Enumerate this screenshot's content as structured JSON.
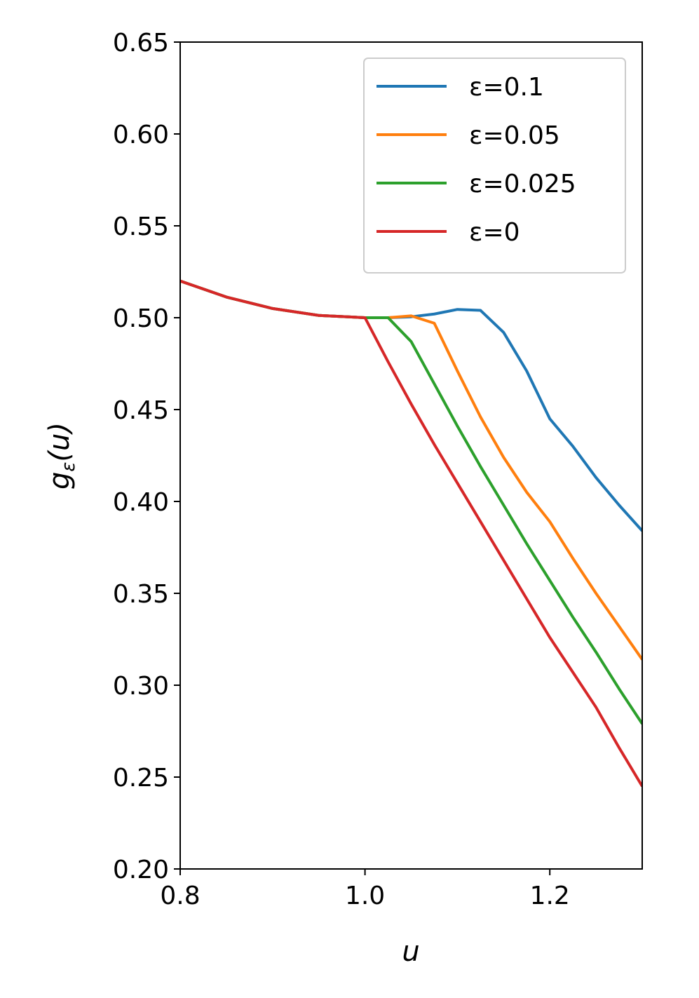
{
  "chart_data": {
    "type": "line",
    "xlabel": "u",
    "ylabel": {
      "base": "g",
      "sub": "ε",
      "rest": "(u)"
    },
    "x": [
      0.8,
      0.85,
      0.9,
      0.95,
      1.0,
      1.025,
      1.05,
      1.075,
      1.1,
      1.125,
      1.15,
      1.175,
      1.2,
      1.225,
      1.25,
      1.275,
      1.3
    ],
    "series": [
      {
        "name": "ε=0.1",
        "color": "#1f77b4",
        "values": [
          0.52,
          0.51125,
          0.505,
          0.50125,
          0.5,
          0.5,
          0.5005,
          0.502,
          0.5045,
          0.504,
          0.492,
          0.471,
          0.445,
          0.43,
          0.413,
          0.398,
          0.384
        ]
      },
      {
        "name": "ε=0.05",
        "color": "#ff7f0e",
        "values": [
          0.52,
          0.51125,
          0.505,
          0.50125,
          0.5,
          0.5,
          0.501,
          0.497,
          0.471,
          0.446,
          0.424,
          0.405,
          0.389,
          0.369,
          0.35,
          0.332,
          0.314
        ]
      },
      {
        "name": "ε=0.025",
        "color": "#2ca02c",
        "values": [
          0.52,
          0.51125,
          0.505,
          0.50125,
          0.5,
          0.5,
          0.487,
          0.464,
          0.441,
          0.419,
          0.398,
          0.377,
          0.357,
          0.337,
          0.318,
          0.298,
          0.279
        ]
      },
      {
        "name": "ε=0",
        "color": "#d62728",
        "values": [
          0.52,
          0.51125,
          0.505,
          0.50125,
          0.5,
          0.476,
          0.453,
          0.431,
          0.41,
          0.389,
          0.368,
          0.347,
          0.326,
          0.307,
          0.288,
          0.266,
          0.245
        ]
      }
    ],
    "xlim": [
      0.8,
      1.3
    ],
    "xticks": [
      0.8,
      {
        "value": 1,
        "label": "1.0"
      },
      1.2
    ],
    "ylim": [
      0.2,
      0.65
    ],
    "yticks": [
      {
        "value": 0.2,
        "label": "0.20"
      },
      0.25,
      {
        "value": 0.3,
        "label": "0.30"
      },
      0.35,
      {
        "value": 0.4,
        "label": "0.40"
      },
      0.45,
      {
        "value": 0.5,
        "label": "0.50"
      },
      0.55,
      {
        "value": 0.6,
        "label": "0.60"
      },
      0.65
    ],
    "legend": "upper right"
  }
}
